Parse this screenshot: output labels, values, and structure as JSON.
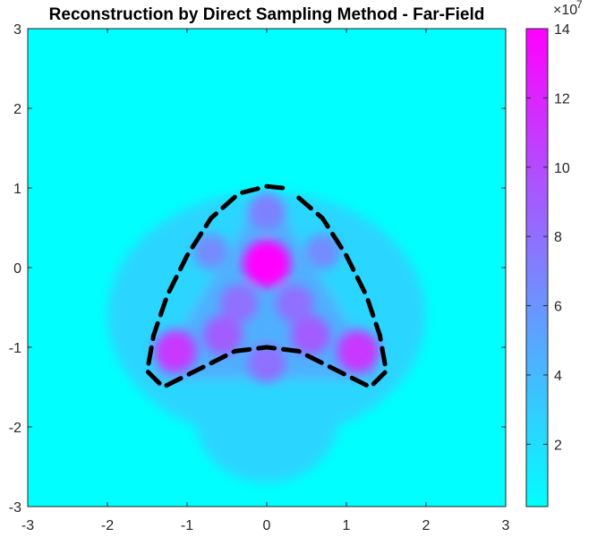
{
  "chart_data": {
    "type": "heatmap",
    "subtype": "filled-contour",
    "title": "Reconstruction by Direct Sampling Method - Far-Field",
    "xlabel": "",
    "ylabel": "",
    "xlim": [
      -3,
      3
    ],
    "ylim": [
      -3,
      3
    ],
    "x_ticks": [
      -3,
      -2,
      -1,
      0,
      1,
      2,
      3
    ],
    "y_ticks": [
      3,
      2,
      1,
      0,
      -1,
      -2,
      -3
    ],
    "x_tick_labels": [
      "-3",
      "-2",
      "-1",
      "0",
      "1",
      "2",
      "3"
    ],
    "y_tick_labels": [
      "3",
      "2",
      "1",
      "0",
      "-1",
      "-2",
      "-3"
    ],
    "grid": false,
    "colormap": [
      "#00ffff",
      "#ff00ff"
    ],
    "colorbar": {
      "range": [
        0.2,
        14
      ],
      "ticks": [
        2,
        4,
        6,
        8,
        10,
        12,
        14
      ],
      "tick_labels": [
        "2",
        "4",
        "6",
        "8",
        "10",
        "12",
        "14"
      ],
      "multiplier": "×10",
      "exponent": "7"
    },
    "peaks": [
      {
        "x": 0.0,
        "y": 0.05,
        "value": 14
      },
      {
        "x": -1.15,
        "y": -1.05,
        "value": 11
      },
      {
        "x": 1.15,
        "y": -1.05,
        "value": 11
      },
      {
        "x": -0.55,
        "y": -0.85,
        "value": 9
      },
      {
        "x": 0.55,
        "y": -0.85,
        "value": 9
      },
      {
        "x": -0.35,
        "y": -0.45,
        "value": 8
      },
      {
        "x": 0.35,
        "y": -0.45,
        "value": 8
      },
      {
        "x": 0.0,
        "y": -1.2,
        "value": 8
      },
      {
        "x": 0.0,
        "y": 0.7,
        "value": 7
      },
      {
        "x": -0.7,
        "y": 0.2,
        "value": 6.5
      },
      {
        "x": 0.7,
        "y": 0.2,
        "value": 6.5
      }
    ],
    "boundary": {
      "style": "dashed",
      "color": "#000000",
      "points": [
        [
          0.2,
          1.0
        ],
        [
          0.0,
          1.02
        ],
        [
          -0.35,
          0.93
        ],
        [
          -0.7,
          0.62
        ],
        [
          -1.0,
          0.15
        ],
        [
          -1.25,
          -0.35
        ],
        [
          -1.42,
          -0.85
        ],
        [
          -1.5,
          -1.3
        ],
        [
          -1.3,
          -1.5
        ],
        [
          -0.9,
          -1.3
        ],
        [
          -0.4,
          -1.05
        ],
        [
          0.0,
          -1.0
        ],
        [
          0.4,
          -1.05
        ],
        [
          0.9,
          -1.3
        ],
        [
          1.3,
          -1.5
        ],
        [
          1.5,
          -1.3
        ],
        [
          1.42,
          -0.85
        ],
        [
          1.25,
          -0.35
        ],
        [
          1.0,
          0.15
        ],
        [
          0.7,
          0.62
        ],
        [
          0.35,
          0.92
        ]
      ]
    }
  }
}
